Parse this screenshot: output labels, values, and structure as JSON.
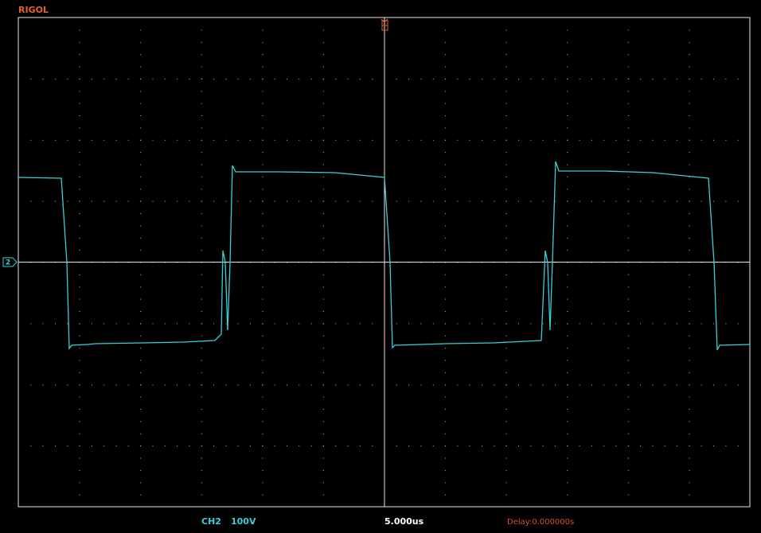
{
  "header": {
    "brand": "RIGOL"
  },
  "channel_marker": "2",
  "status_bar": {
    "channel": "CH2",
    "volts_per_div": "100V",
    "time_per_div": "5.000us",
    "delay": "Delay:0.000000s"
  }
}
